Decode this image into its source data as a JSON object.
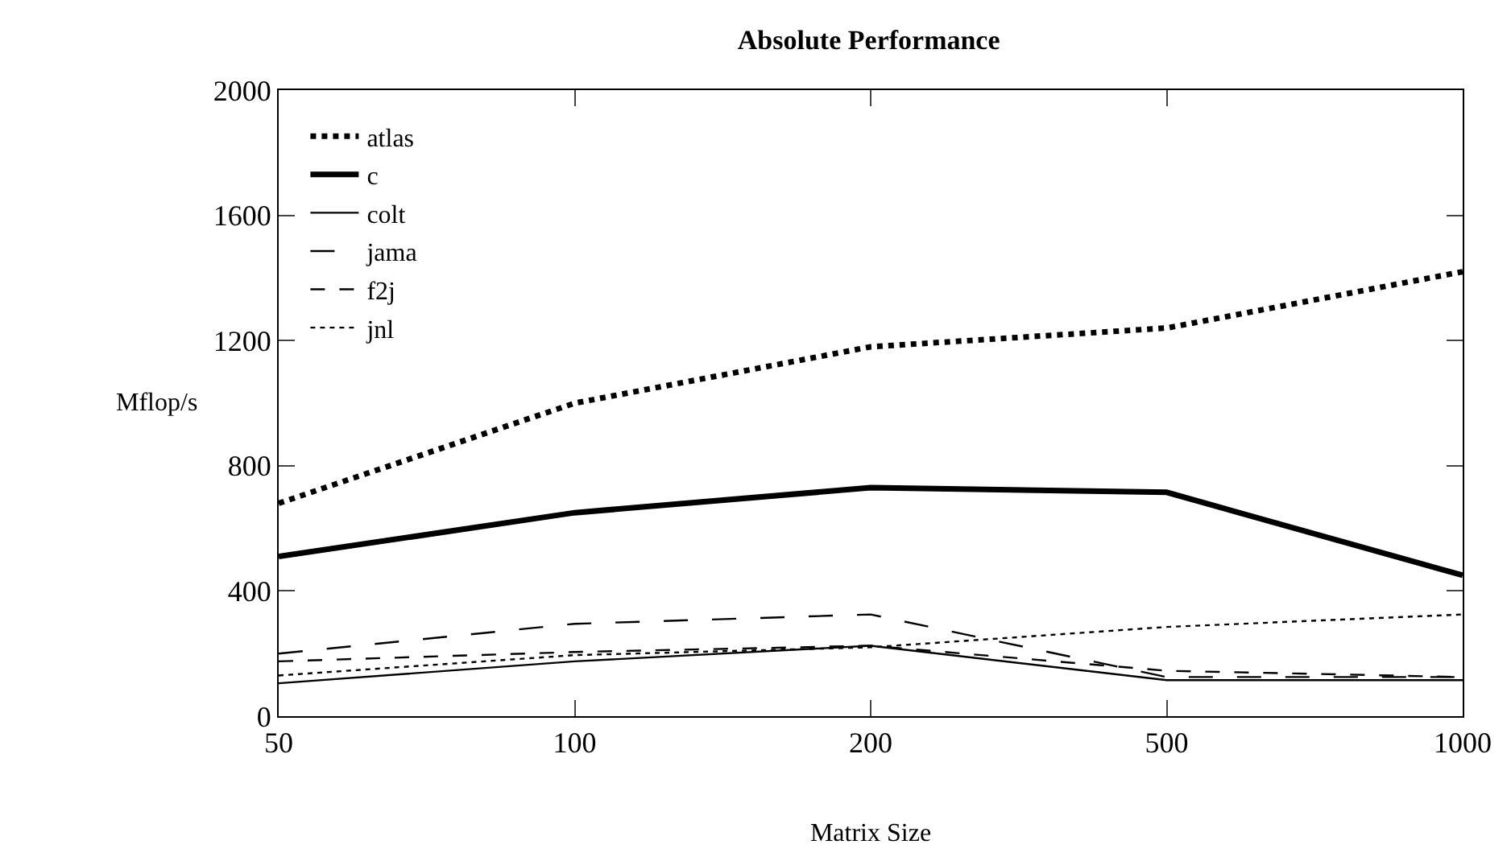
{
  "chart_data": {
    "type": "line",
    "title": "Absolute Performance",
    "xlabel": "Matrix Size",
    "ylabel": "Mflop/s",
    "categories": [
      "50",
      "100",
      "200",
      "500",
      "1000"
    ],
    "ylim": [
      0,
      2000
    ],
    "yticks": [
      0,
      400,
      800,
      1200,
      1600,
      2000
    ],
    "grid": false,
    "legend": "top left",
    "marker": "none",
    "series": [
      {
        "name": "atlas",
        "color": "#000000",
        "line_style": "dotted",
        "values": [
          680,
          1000,
          1180,
          1240,
          1420
        ]
      },
      {
        "name": "c",
        "color": "#000000",
        "line_style": "solid",
        "values": [
          510,
          650,
          730,
          715,
          450
        ]
      },
      {
        "name": "colt",
        "color": "#000000",
        "line_style": "solid",
        "values": [
          105,
          175,
          225,
          115,
          115
        ]
      },
      {
        "name": "jama",
        "color": "#000000",
        "line_style": "longdash",
        "values": [
          200,
          295,
          325,
          125,
          125
        ]
      },
      {
        "name": "f2j",
        "color": "#000000",
        "line_style": "dashed",
        "values": [
          175,
          205,
          225,
          145,
          125
        ]
      },
      {
        "name": "jnl",
        "color": "#000000",
        "line_style": "dotted",
        "values": [
          130,
          195,
          220,
          285,
          325
        ]
      }
    ]
  }
}
